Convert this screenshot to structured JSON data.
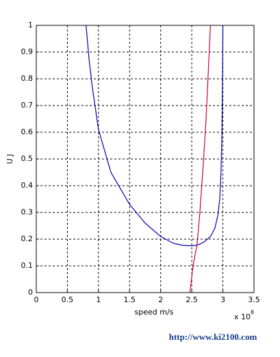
{
  "chart_data": {
    "type": "line",
    "xlabel": "speed    m/s",
    "ylabel": "U    J",
    "x_multiplier": "x 10",
    "x_multiplier_exp": "8",
    "watermark": "http://www.ki2100.com",
    "xlim": [
      0,
      3.5
    ],
    "xticks": [
      0,
      0.5,
      1,
      1.5,
      2,
      2.5,
      3,
      3.5
    ],
    "ylim": [
      0,
      1
    ],
    "yticks": [
      0,
      0.1,
      0.2,
      0.3,
      0.4,
      0.5,
      0.6,
      0.7,
      0.8,
      0.9,
      1
    ],
    "grid": true,
    "series": [
      {
        "color": "#0000aa",
        "x": [
          0.8,
          0.85,
          0.9,
          1.0,
          1.2,
          1.5,
          1.75,
          2.0,
          2.2,
          2.35,
          2.5,
          2.6,
          2.7,
          2.8,
          2.87,
          2.92,
          2.95,
          2.97,
          2.985,
          2.995,
          3.0
        ],
        "values": [
          1.0,
          0.87,
          0.77,
          0.61,
          0.45,
          0.33,
          0.26,
          0.21,
          0.185,
          0.177,
          0.175,
          0.178,
          0.19,
          0.21,
          0.24,
          0.29,
          0.35,
          0.45,
          0.6,
          0.8,
          1.0
        ]
      },
      {
        "color": "#cc0033",
        "x": [
          2.47,
          2.52,
          2.585,
          2.63,
          2.69,
          2.73,
          2.76,
          2.8
        ],
        "values": [
          0,
          0.1,
          0.18,
          0.3,
          0.5,
          0.65,
          0.8,
          1.0
        ]
      }
    ]
  }
}
